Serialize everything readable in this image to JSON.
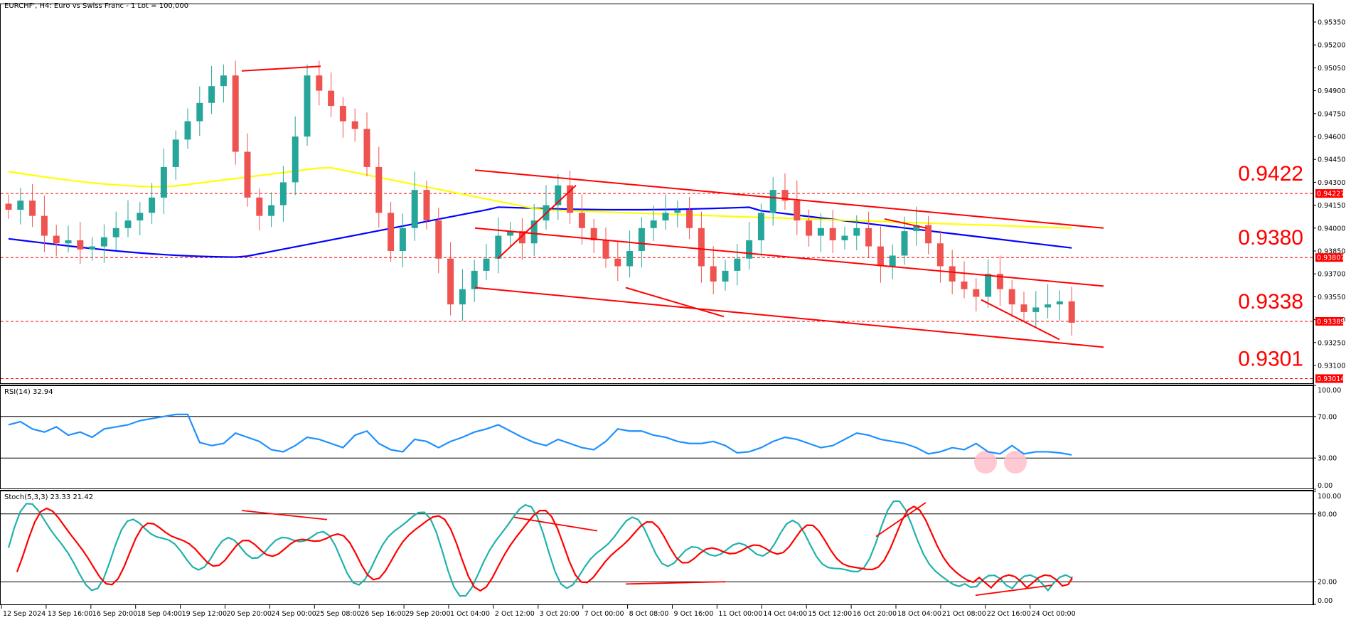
{
  "header": {
    "title": "EURCHF', H4:  Euro vs Swiss Franc - 1 Lot = 100,000"
  },
  "colors": {
    "bull": "#26a69a",
    "bear": "#ef5350",
    "ma_fast": "#0000ff",
    "ma_slow": "#ffff00",
    "trendline": "#ff0000",
    "rsi": "#1e90ff",
    "stoch_main": "#20b2aa",
    "stoch_signal": "#ff0000",
    "highlight": "#ffc0cb"
  },
  "price_axis": {
    "ticks": [
      "0.95350",
      "0.95200",
      "0.95050",
      "0.94900",
      "0.94750",
      "0.94600",
      "0.94450",
      "0.94300",
      "0.94150",
      "0.94000",
      "0.93850",
      "0.93700",
      "0.93550",
      "0.93400",
      "0.93250",
      "0.93100"
    ],
    "tags": [
      "0.94227",
      "0.93807",
      "0.93389",
      "0.93014"
    ]
  },
  "levels": [
    {
      "label": "0.9422",
      "price": 0.94227
    },
    {
      "label": "0.9380",
      "price": 0.93807
    },
    {
      "label": "0.9338",
      "price": 0.93389
    },
    {
      "label": "0.9301",
      "price": 0.93014
    }
  ],
  "rsi": {
    "label": "RSI(14) 32.94",
    "ticks": [
      "100.00",
      "70.00",
      "30.00",
      "0.00"
    ]
  },
  "stoch": {
    "label": "Stoch(5,3,3) 23.33 21.42",
    "ticks": [
      "100.00",
      "80.00",
      "20.00",
      "0.00"
    ]
  },
  "time_axis": {
    "labels": [
      "12 Sep 2024",
      "13 Sep 16:00",
      "16 Sep 20:00",
      "18 Sep 04:00",
      "19 Sep 12:00",
      "20 Sep 20:00",
      "24 Sep 00:00",
      "25 Sep 08:00",
      "26 Sep 16:00",
      "29 Sep 20:00",
      "1 Oct 04:00",
      "2 Oct 12:00",
      "3 Oct 20:00",
      "7 Oct 00:00",
      "8 Oct 08:00",
      "9 Oct 16:00",
      "11 Oct 00:00",
      "14 Oct 04:00",
      "15 Oct 12:00",
      "16 Oct 20:00",
      "18 Oct 04:00",
      "21 Oct 08:00",
      "22 Oct 16:00",
      "24 Oct 00:00"
    ]
  },
  "chart_data": {
    "type": "candlestick",
    "title": "EURCHF', H4: Euro vs Swiss Franc - 1 Lot = 100,000",
    "symbol": "EURCHF",
    "timeframe": "H4",
    "ylim": [
      0.9295,
      0.9545
    ],
    "x_ticks": [
      "12 Sep 2024",
      "13 Sep 16:00",
      "16 Sep 20:00",
      "18 Sep 04:00",
      "19 Sep 12:00",
      "20 Sep 20:00",
      "24 Sep 00:00",
      "25 Sep 08:00",
      "26 Sep 16:00",
      "29 Sep 20:00",
      "1 Oct 04:00",
      "2 Oct 12:00",
      "3 Oct 20:00",
      "7 Oct 00:00",
      "8 Oct 08:00",
      "9 Oct 16:00",
      "11 Oct 00:00",
      "14 Oct 04:00",
      "15 Oct 12:00",
      "16 Oct 20:00",
      "18 Oct 04:00",
      "21 Oct 08:00",
      "22 Oct 16:00",
      "24 Oct 00:00"
    ],
    "y_ticks": [
      0.9535,
      0.952,
      0.9505,
      0.949,
      0.9475,
      0.946,
      0.9445,
      0.943,
      0.9415,
      0.94,
      0.9385,
      0.937,
      0.9355,
      0.934,
      0.9325,
      0.931
    ],
    "horizontal_levels": [
      0.94227,
      0.93807,
      0.93389,
      0.93014
    ],
    "level_annotations": [
      "0.9422",
      "0.9380",
      "0.9338",
      "0.9301"
    ],
    "closes_approx": [
      0.9412,
      0.9418,
      0.9408,
      0.9395,
      0.939,
      0.9392,
      0.9386,
      0.9388,
      0.9394,
      0.94,
      0.9405,
      0.941,
      0.942,
      0.944,
      0.9458,
      0.947,
      0.9482,
      0.9493,
      0.95,
      0.945,
      0.942,
      0.9408,
      0.9415,
      0.943,
      0.946,
      0.95,
      0.949,
      0.948,
      0.947,
      0.9465,
      0.944,
      0.941,
      0.9385,
      0.94,
      0.9425,
      0.9405,
      0.938,
      0.935,
      0.936,
      0.9372,
      0.938,
      0.9395,
      0.9398,
      0.939,
      0.9405,
      0.9415,
      0.9428,
      0.941,
      0.94,
      0.9392,
      0.938,
      0.9375,
      0.9385,
      0.94,
      0.9405,
      0.941,
      0.9412,
      0.94,
      0.9375,
      0.9365,
      0.9372,
      0.938,
      0.9392,
      0.941,
      0.9425,
      0.9418,
      0.9405,
      0.9395,
      0.94,
      0.9392,
      0.9395,
      0.94,
      0.9388,
      0.9375,
      0.9382,
      0.9398,
      0.9402,
      0.939,
      0.9375,
      0.9365,
      0.936,
      0.9355,
      0.937,
      0.936,
      0.935,
      0.9345,
      0.9348,
      0.935,
      0.9352,
      0.9338
    ],
    "moving_averages": [
      {
        "name": "MA fast (blue)",
        "color": "#0000ff",
        "start": 0.9393,
        "mid": 0.9412,
        "end": 0.9387
      },
      {
        "name": "MA slow (yellow)",
        "color": "#ffff00",
        "start": 0.9437,
        "mid": 0.942,
        "end": 0.94
      }
    ],
    "indicators": [
      {
        "name": "RSI(14)",
        "value": 32.94,
        "levels": [
          70,
          30
        ],
        "ylim": [
          0,
          100
        ],
        "values_approx": [
          62,
          65,
          58,
          55,
          60,
          52,
          55,
          50,
          58,
          60,
          62,
          66,
          68,
          70,
          72,
          72,
          45,
          42,
          44,
          54,
          50,
          46,
          38,
          36,
          42,
          50,
          48,
          44,
          40,
          52,
          56,
          44,
          38,
          36,
          48,
          46,
          40,
          46,
          50,
          55,
          58,
          62,
          56,
          50,
          45,
          42,
          48,
          44,
          40,
          38,
          46,
          58,
          56,
          56,
          52,
          50,
          46,
          44,
          44,
          46,
          42,
          35,
          36,
          40,
          46,
          50,
          48,
          44,
          40,
          42,
          48,
          54,
          52,
          48,
          46,
          44,
          40,
          34,
          36,
          40,
          38,
          44,
          36,
          34,
          42,
          34,
          36,
          36,
          35,
          33
        ]
      },
      {
        "name": "Stoch(5,3,3)",
        "main": 23.33,
        "signal": 21.42,
        "levels": [
          80,
          20
        ],
        "ylim": [
          0,
          100
        ]
      }
    ],
    "annotations": [
      "descending channel (3 parallel red lines)",
      "bullish RSI divergence circles near 30",
      "stochastic bullish divergence line"
    ]
  }
}
